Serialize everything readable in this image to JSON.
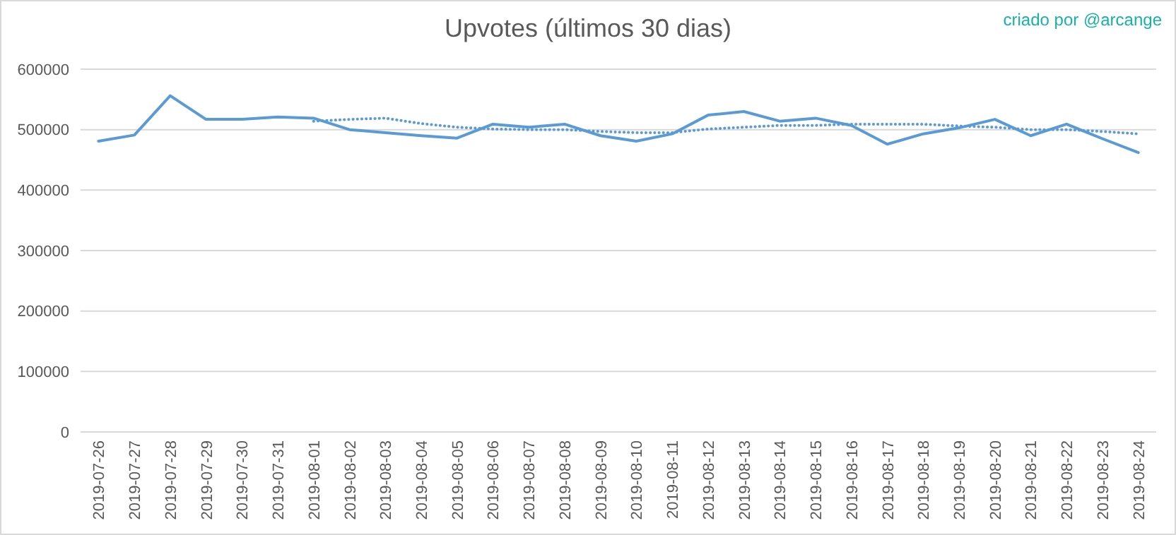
{
  "chart_data": {
    "type": "line",
    "title": "Upvotes (últimos 30 dias)",
    "annotations": [
      "criado por @arcange"
    ],
    "categories": [
      "2019-07-26",
      "2019-07-27",
      "2019-07-28",
      "2019-07-29",
      "2019-07-30",
      "2019-07-31",
      "2019-08-01",
      "2019-08-02",
      "2019-08-03",
      "2019-08-04",
      "2019-08-05",
      "2019-08-06",
      "2019-08-07",
      "2019-08-08",
      "2019-08-09",
      "2019-08-10",
      "2019-08-11",
      "2019-08-12",
      "2019-08-13",
      "2019-08-14",
      "2019-08-15",
      "2019-08-16",
      "2019-08-17",
      "2019-08-18",
      "2019-08-19",
      "2019-08-20",
      "2019-08-21",
      "2019-08-22",
      "2019-08-23",
      "2019-08-24"
    ],
    "series": [
      {
        "color": "#5b9bd5",
        "line_style": "solid",
        "values": [
          481000,
          491000,
          556000,
          517000,
          517000,
          521000,
          519000,
          500000,
          495000,
          490000,
          486000,
          509000,
          504000,
          509000,
          490000,
          481000,
          493000,
          524000,
          530000,
          514000,
          519000,
          507000,
          476000,
          493000,
          503000,
          517000,
          490000,
          509000,
          485000,
          462000
        ]
      },
      {
        "color": "#5b9bd5",
        "line_style": "dotted",
        "values": [
          null,
          null,
          null,
          null,
          null,
          null,
          514000,
          517000,
          519000,
          510000,
          504000,
          501000,
          500000,
          500000,
          497000,
          495000,
          495000,
          501000,
          504000,
          507000,
          507000,
          509000,
          509000,
          509000,
          506000,
          504000,
          500000,
          500000,
          497000,
          493000
        ]
      }
    ],
    "ylim": [
      0,
      600000
    ],
    "yticks": [
      0,
      100000,
      200000,
      300000,
      400000,
      500000,
      600000
    ],
    "grid": "y"
  }
}
